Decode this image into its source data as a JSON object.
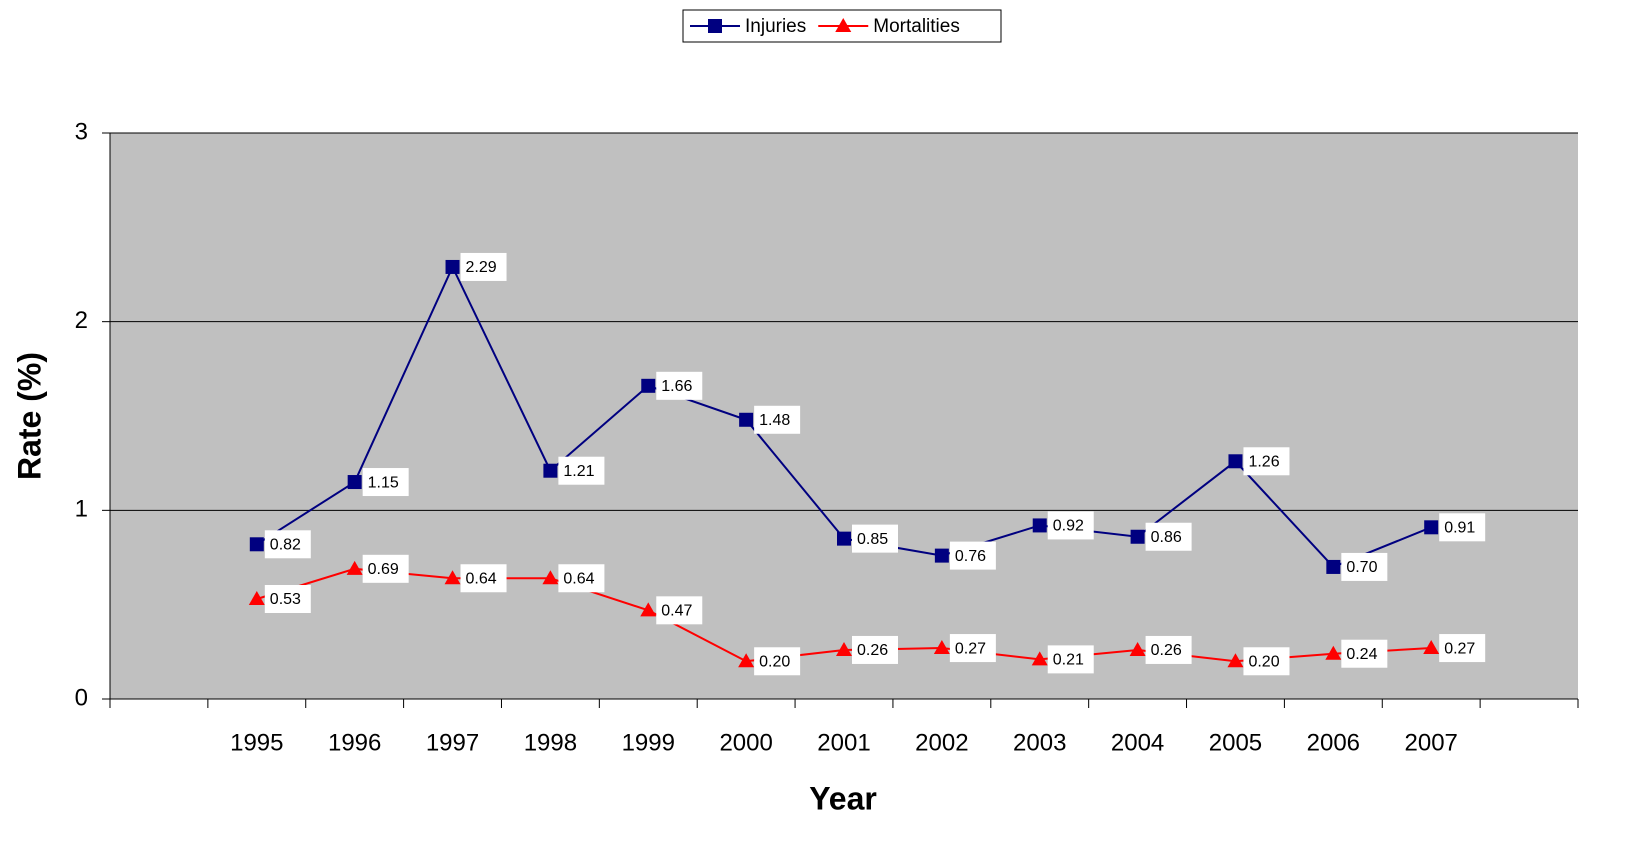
{
  "chart_data": {
    "type": "line",
    "x_label": "Year",
    "y_label": "Rate (%)",
    "categories": [
      null,
      "1995",
      "1996",
      "1997",
      "1998",
      "1999",
      "2000",
      "2001",
      "2002",
      "2003",
      "2004",
      "2005",
      "2006",
      "2007",
      null
    ],
    "series": [
      {
        "name": "Injuries",
        "color": "#000080",
        "marker": "square",
        "values": [
          null,
          0.82,
          1.15,
          2.29,
          1.21,
          1.66,
          1.48,
          0.85,
          0.76,
          0.92,
          0.86,
          1.26,
          0.7,
          0.91,
          null
        ],
        "value_labels": [
          null,
          "0.82",
          "1.15",
          "2.29",
          "1.21",
          "1.66",
          "1.48",
          "0.85",
          "0.76",
          "0.92",
          "0.86",
          "1.26",
          "0.70",
          "0.91",
          null
        ]
      },
      {
        "name": "Mortalities",
        "color": "#ff0000",
        "marker": "triangle",
        "values": [
          null,
          0.53,
          0.69,
          0.64,
          0.64,
          0.47,
          0.2,
          0.26,
          0.27,
          0.21,
          0.26,
          0.2,
          0.24,
          0.27,
          null
        ],
        "value_labels": [
          null,
          "0.53",
          "0.69",
          "0.64",
          "0.64",
          "0.47",
          "0.20",
          "0.26",
          "0.27",
          "0.21",
          "0.26",
          "0.20",
          "0.24",
          "0.27",
          null
        ]
      }
    ],
    "ylim": [
      0,
      3
    ],
    "yticks": [
      0,
      1,
      2,
      3
    ],
    "grid": true,
    "plot_background": "#c0c0c0",
    "legend": "top"
  }
}
